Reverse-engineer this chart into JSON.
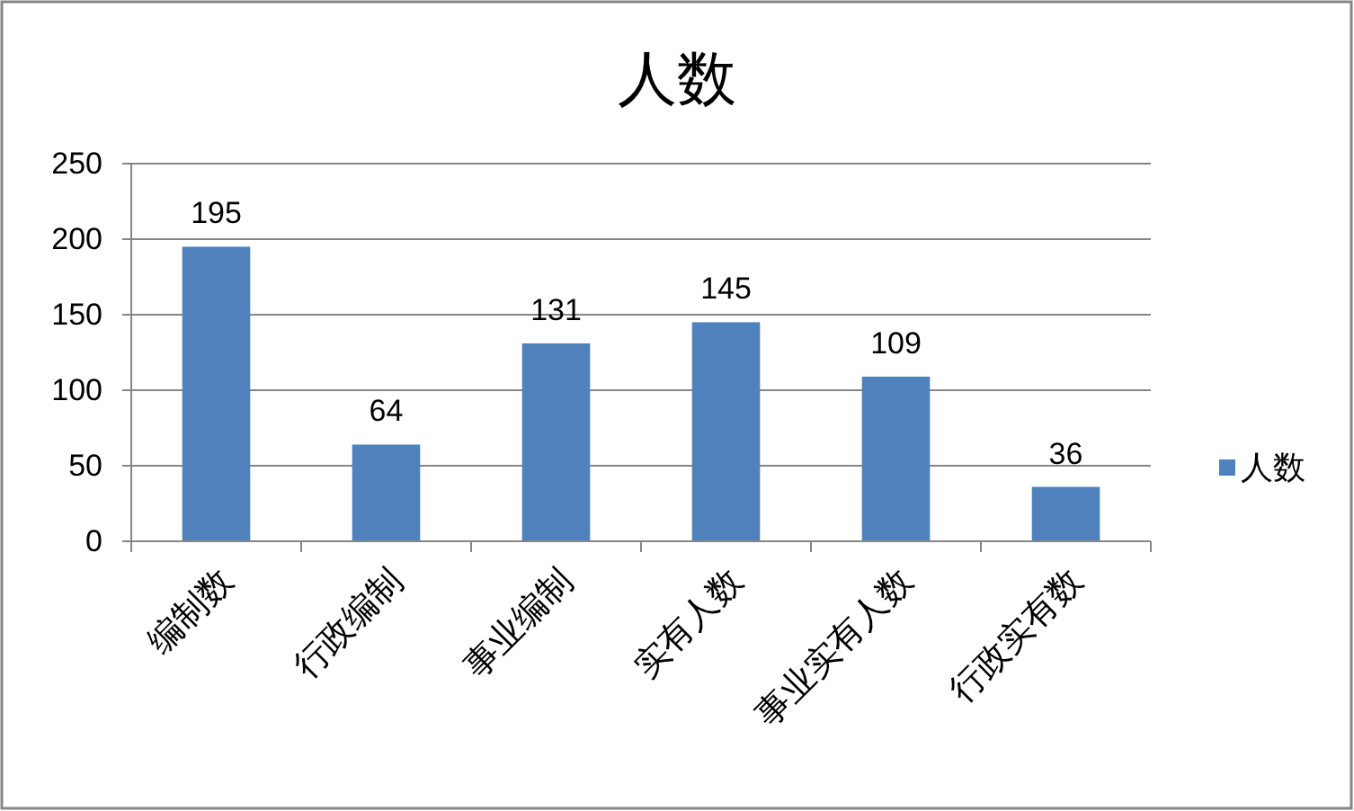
{
  "chart_data": {
    "type": "bar",
    "title": "人数",
    "categories": [
      "编制数",
      "行政编制",
      "事业编制",
      "实有人数",
      "事业实有人数",
      "行政实有数"
    ],
    "series": [
      {
        "name": "人数",
        "color": "#4f81bd",
        "values": [
          195,
          64,
          131,
          145,
          109,
          36
        ]
      }
    ],
    "ylim": [
      0,
      250
    ],
    "yticks": [
      0,
      50,
      100,
      150,
      200,
      250
    ],
    "grid": "y",
    "legend": "right",
    "data_labels": true
  }
}
